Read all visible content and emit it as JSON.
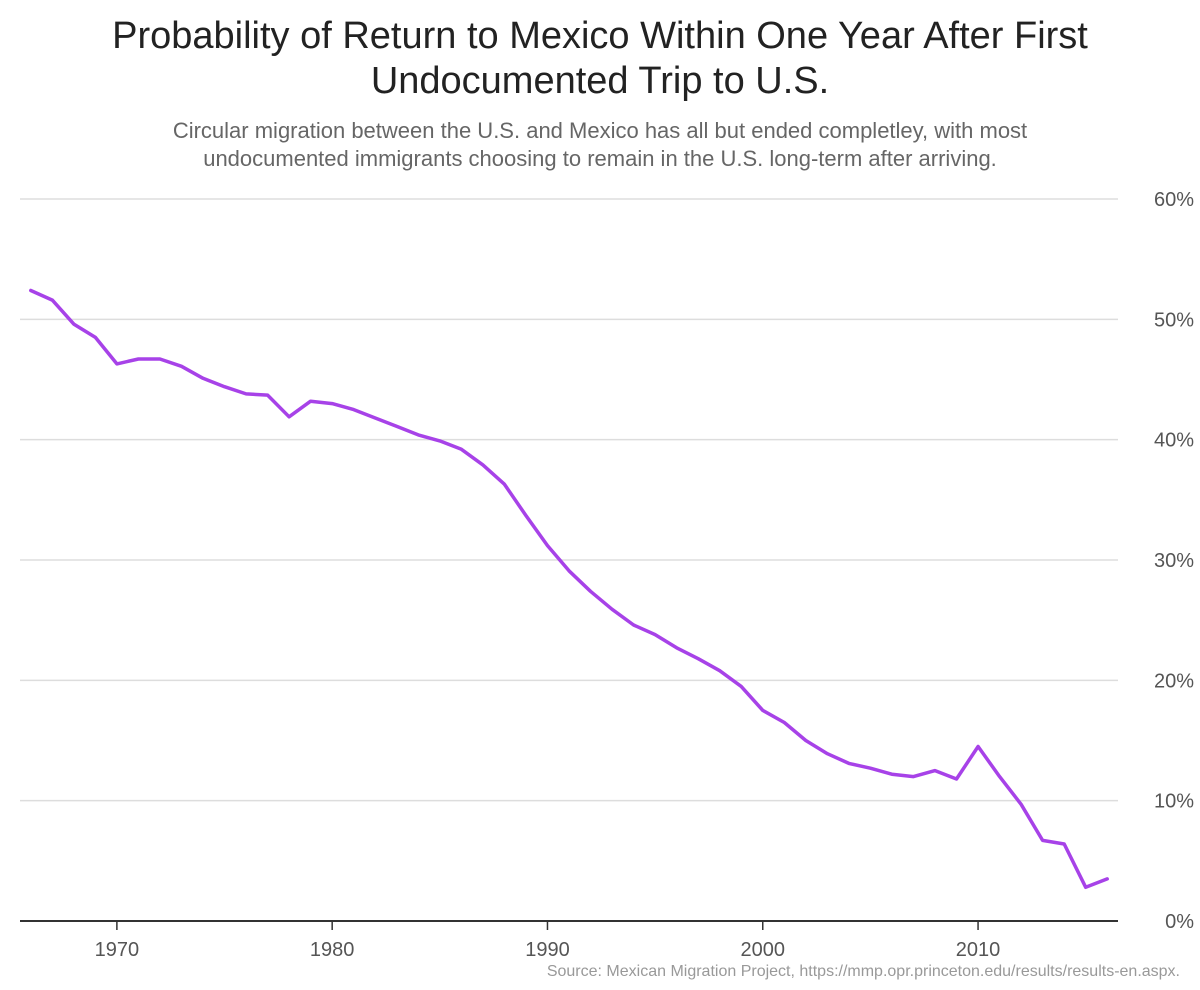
{
  "title_lines": [
    "Probability of Return to Mexico Within One Year After First",
    "Undocumented Trip to U.S."
  ],
  "subtitle_lines": [
    "Circular migration between the U.S. and Mexico has all but ended completley, with most",
    "undocumented immigrants choosing to remain in the U.S. long-term after arriving."
  ],
  "source": "Source: Mexican Migration Project, https://mmp.opr.princeton.edu/results/results-en.aspx.",
  "colors": {
    "line": "#a742e8",
    "grid": "#dddddd",
    "axis": "#333333"
  },
  "chart_data": {
    "type": "line",
    "title": "Probability of Return to Mexico Within One Year After First Undocumented Trip to U.S.",
    "subtitle": "Circular migration between the U.S. and Mexico has all but ended completley, with most undocumented immigrants choosing to remain in the U.S. long-term after arriving.",
    "xlabel": "",
    "ylabel": "",
    "xlim": [
      1965.5,
      2016.5
    ],
    "ylim": [
      0,
      60
    ],
    "y_axis_position": "right",
    "grid": "horizontal",
    "legend": "none",
    "x_ticks": [
      1970,
      1980,
      1990,
      2000,
      2010
    ],
    "x_tick_labels": [
      "1970",
      "1980",
      "1990",
      "2000",
      "2010"
    ],
    "y_ticks": [
      0,
      10,
      20,
      30,
      40,
      50,
      60
    ],
    "y_tick_labels": [
      "0%",
      "10%",
      "20%",
      "30%",
      "40%",
      "50%",
      "60%"
    ],
    "series": [
      {
        "x": [
          1966,
          1967,
          1968,
          1969,
          1970,
          1971,
          1972,
          1973,
          1974,
          1975,
          1976,
          1977,
          1978,
          1979,
          1980,
          1981,
          1982,
          1983,
          1984,
          1985,
          1986,
          1987,
          1988,
          1989,
          1990,
          1991,
          1992,
          1993,
          1994,
          1995,
          1996,
          1997,
          1998,
          1999,
          2000,
          2001,
          2002,
          2003,
          2004,
          2005,
          2006,
          2007,
          2008,
          2009,
          2010,
          2011,
          2012,
          2013,
          2014,
          2015,
          2016
        ],
        "values": [
          52.4,
          51.6,
          49.6,
          48.5,
          46.3,
          46.7,
          46.7,
          46.1,
          45.1,
          44.4,
          43.8,
          43.7,
          41.9,
          43.2,
          43.0,
          42.5,
          41.8,
          41.1,
          40.4,
          39.9,
          39.2,
          37.9,
          36.3,
          33.7,
          31.2,
          29.1,
          27.4,
          25.9,
          24.6,
          23.8,
          22.7,
          21.8,
          20.8,
          19.5,
          17.5,
          16.5,
          15.0,
          13.9,
          13.1,
          12.7,
          12.2,
          12.0,
          12.5,
          11.8,
          14.5,
          12.0,
          9.7,
          6.7,
          6.4,
          2.8,
          3.5
        ]
      }
    ]
  }
}
